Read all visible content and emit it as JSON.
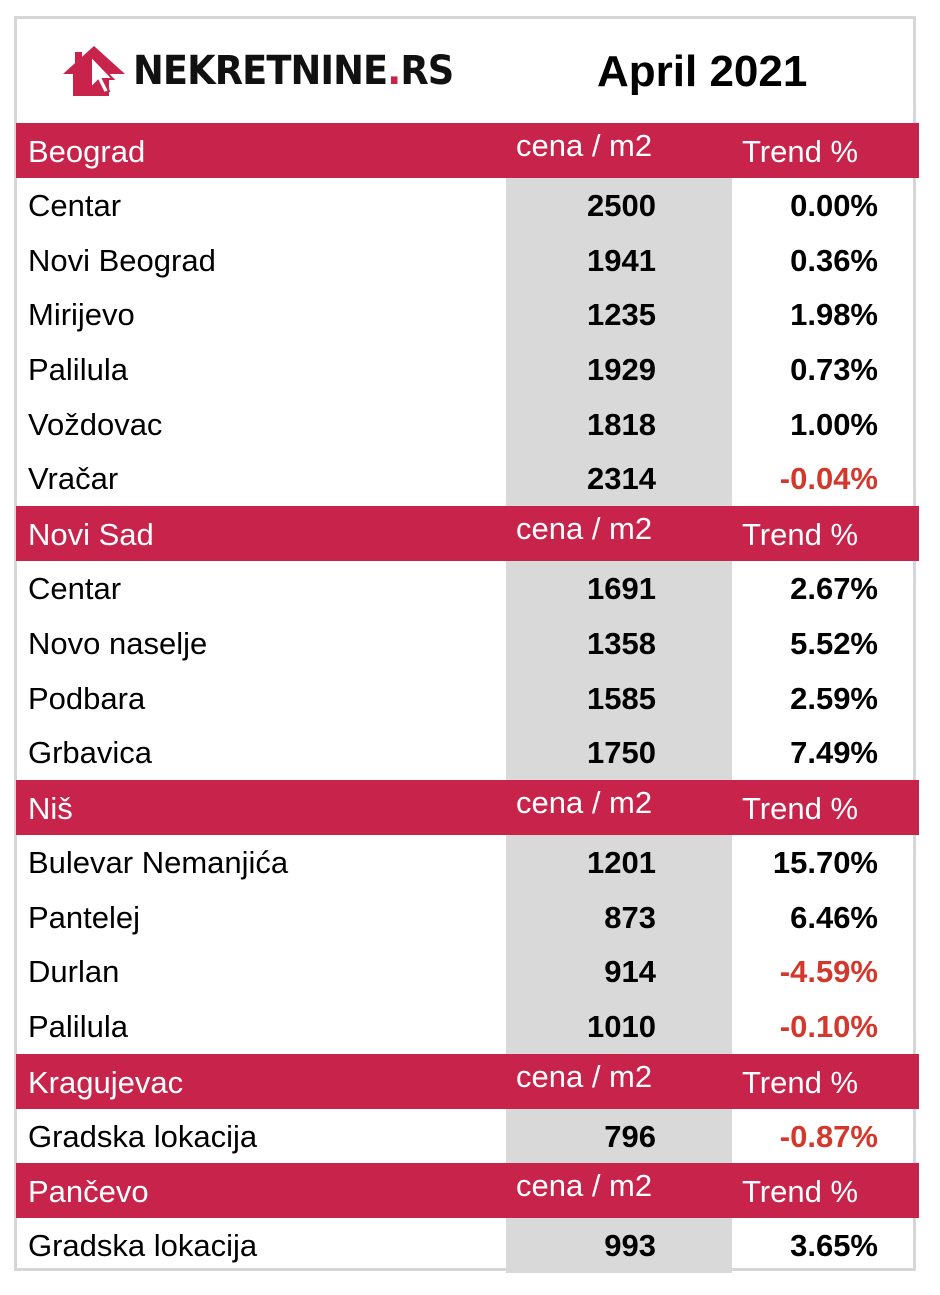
{
  "header": {
    "logo_text_main": "NEKRETNINE",
    "logo_text_dot": ".",
    "logo_text_suffix": "RS",
    "title": "April 2021",
    "brand_color": "#c8234a",
    "negative_color": "#d4382c"
  },
  "columns": {
    "price": "cena / m2",
    "trend": "Trend %"
  },
  "sections": [
    {
      "city": "Beograd",
      "price_label": "cena / m2",
      "trend_label": "Trend %",
      "rows": [
        {
          "location": "Centar",
          "price": "2500",
          "trend": "0.00%",
          "negative": false
        },
        {
          "location": "Novi Beograd",
          "price": "1941",
          "trend": "0.36%",
          "negative": false
        },
        {
          "location": "Mirijevo",
          "price": "1235",
          "trend": "1.98%",
          "negative": false
        },
        {
          "location": "Palilula",
          "price": "1929",
          "trend": "0.73%",
          "negative": false
        },
        {
          "location": "Voždovac",
          "price": "1818",
          "trend": "1.00%",
          "negative": false
        },
        {
          "location": "Vračar",
          "price": "2314",
          "trend": "-0.04%",
          "negative": true
        }
      ]
    },
    {
      "city": "Novi Sad",
      "price_label": "cena / m2",
      "trend_label": "Trend %",
      "rows": [
        {
          "location": "Centar",
          "price": "1691",
          "trend": "2.67%",
          "negative": false
        },
        {
          "location": "Novo naselje",
          "price": "1358",
          "trend": "5.52%",
          "negative": false
        },
        {
          "location": "Podbara",
          "price": "1585",
          "trend": "2.59%",
          "negative": false
        },
        {
          "location": "Grbavica",
          "price": "1750",
          "trend": "7.49%",
          "negative": false
        }
      ]
    },
    {
      "city": "Niš",
      "price_label": "cena / m2",
      "trend_label": "Trend %",
      "rows": [
        {
          "location": "Bulevar Nemanjića",
          "price": "1201",
          "trend": "15.70%",
          "negative": false
        },
        {
          "location": "Pantelej",
          "price": "873",
          "trend": "6.46%",
          "negative": false
        },
        {
          "location": "Durlan",
          "price": "914",
          "trend": "-4.59%",
          "negative": true
        },
        {
          "location": "Palilula",
          "price": "1010",
          "trend": "-0.10%",
          "negative": true
        }
      ]
    },
    {
      "city": "Kragujevac",
      "price_label": "cena / m2",
      "trend_label": "Trend %",
      "rows": [
        {
          "location": "Gradska lokacija",
          "price": "796",
          "trend": "-0.87%",
          "negative": true
        }
      ]
    },
    {
      "city": "Pančevo",
      "price_label": "cena / m2",
      "trend_label": "Trend %",
      "rows": [
        {
          "location": "Gradska lokacija",
          "price": "993",
          "trend": "3.65%",
          "negative": false
        }
      ]
    }
  ]
}
